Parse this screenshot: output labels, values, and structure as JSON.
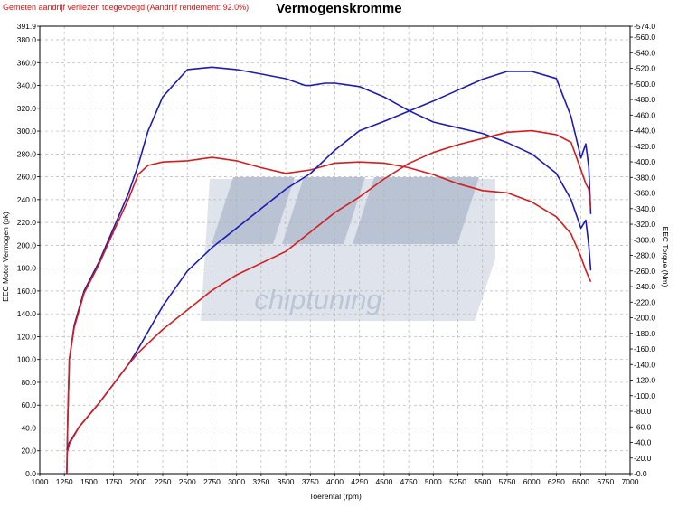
{
  "header": {
    "note": "Gemeten aandrijf verliezen toegevoegd!(Aandrijf rendement: 92.0%)",
    "title": "Vermogenskromme"
  },
  "watermark": {
    "text": "chiptuning",
    "color": "#1f3f7a"
  },
  "chart_data": {
    "type": "line",
    "title": "Vermogenskromme",
    "xlabel": "Toerental (rpm)",
    "ylabel_left": "EEC Motor Vermogen (pk)",
    "ylabel_right": "EEC Torque (Nm)",
    "xlim": [
      1000,
      7000
    ],
    "ylim_left": [
      0,
      391.9
    ],
    "ylim_right": [
      0,
      574.0
    ],
    "grid": true,
    "x_ticks": [
      "1000",
      "1250",
      "1500",
      "1750",
      "2000",
      "2250",
      "2500",
      "2750",
      "3000",
      "3250",
      "3500",
      "3750",
      "4000",
      "4250",
      "4500",
      "4750",
      "5000",
      "5250",
      "5500",
      "5750",
      "6000",
      "6250",
      "6500",
      "6750",
      "7000"
    ],
    "y_left_ticks": [
      {
        "v": 391.9,
        "label": "391.9"
      },
      {
        "v": 380,
        "label": "380.0"
      },
      {
        "v": 360,
        "label": "360.0"
      },
      {
        "v": 340,
        "label": "340.0"
      },
      {
        "v": 320,
        "label": "320.0"
      },
      {
        "v": 300,
        "label": "300.0"
      },
      {
        "v": 280,
        "label": "280.0"
      },
      {
        "v": 260,
        "label": "260.0"
      },
      {
        "v": 240,
        "label": "240.0"
      },
      {
        "v": 220,
        "label": "220.0"
      },
      {
        "v": 200,
        "label": "200.0"
      },
      {
        "v": 180,
        "label": "180.0"
      },
      {
        "v": 160,
        "label": "160.0"
      },
      {
        "v": 140,
        "label": "140.0"
      },
      {
        "v": 120,
        "label": "120.0"
      },
      {
        "v": 100,
        "label": "100.0"
      },
      {
        "v": 80,
        "label": "80.0"
      },
      {
        "v": 60,
        "label": "60.0"
      },
      {
        "v": 40,
        "label": "40.0"
      },
      {
        "v": 20,
        "label": "20.0"
      },
      {
        "v": 0,
        "label": "0.0"
      }
    ],
    "y_right_ticks": [
      {
        "v": 574,
        "label": "574.0"
      },
      {
        "v": 560,
        "label": "560.0"
      },
      {
        "v": 540,
        "label": "540.0"
      },
      {
        "v": 520,
        "label": "520.0"
      },
      {
        "v": 500,
        "label": "500.0"
      },
      {
        "v": 480,
        "label": "480.0"
      },
      {
        "v": 460,
        "label": "460.0"
      },
      {
        "v": 440,
        "label": "440.0"
      },
      {
        "v": 420,
        "label": "420.0"
      },
      {
        "v": 400,
        "label": "400.0"
      },
      {
        "v": 380,
        "label": "380.0"
      },
      {
        "v": 360,
        "label": "360.0"
      },
      {
        "v": 340,
        "label": "340.0"
      },
      {
        "v": 320,
        "label": "320.0"
      },
      {
        "v": 300,
        "label": "300.0"
      },
      {
        "v": 280,
        "label": "280.0"
      },
      {
        "v": 260,
        "label": "260.0"
      },
      {
        "v": 240,
        "label": "240.0"
      },
      {
        "v": 220,
        "label": "220.0"
      },
      {
        "v": 200,
        "label": "200.0"
      },
      {
        "v": 180,
        "label": "180.0"
      },
      {
        "v": 160,
        "label": "160.0"
      },
      {
        "v": 140,
        "label": "140.0"
      },
      {
        "v": 120,
        "label": "120.0"
      },
      {
        "v": 100,
        "label": "100.0"
      },
      {
        "v": 80,
        "label": "80.0"
      },
      {
        "v": 60,
        "label": "60.0"
      },
      {
        "v": 40,
        "label": "40.0"
      },
      {
        "v": 20,
        "label": "20.0"
      },
      {
        "v": 0,
        "label": "0.0"
      }
    ],
    "series": [
      {
        "axis": "left",
        "color": "#1c1cb4",
        "x": [
          1275,
          1285,
          1300,
          1350,
          1450,
          1600,
          1750,
          1900,
          2000,
          2100,
          2250,
          2500,
          2750,
          3000,
          3250,
          3500,
          3700,
          3750,
          3900,
          4000,
          4250,
          4500,
          4750,
          5000,
          5250,
          5500,
          5750,
          6000,
          6250,
          6400,
          6500,
          6550,
          6580,
          6600
        ],
        "y": [
          0,
          50,
          100,
          130,
          160,
          185,
          215,
          245,
          270,
          300,
          330,
          354,
          356,
          354,
          350,
          346,
          340,
          340,
          342,
          342,
          339,
          330,
          318,
          308,
          303,
          298,
          290,
          280,
          263,
          240,
          215,
          222,
          200,
          178
        ]
      },
      {
        "axis": "left",
        "color": "#d21e1e",
        "x": [
          1275,
          1285,
          1300,
          1350,
          1450,
          1600,
          1750,
          1900,
          2000,
          2100,
          2250,
          2500,
          2750,
          3000,
          3250,
          3500,
          3750,
          4000,
          4250,
          4500,
          4750,
          5000,
          5250,
          5500,
          5750,
          6000,
          6250,
          6400,
          6500,
          6550,
          6580,
          6600
        ],
        "y": [
          0,
          50,
          100,
          128,
          158,
          183,
          212,
          240,
          262,
          270,
          273,
          274,
          277,
          274,
          268,
          263,
          266,
          272,
          273,
          272,
          268,
          262,
          254,
          248,
          246,
          238,
          225,
          210,
          190,
          178,
          172,
          168
        ]
      },
      {
        "axis": "right",
        "color": "#1c1cb4",
        "x": [
          1275,
          1300,
          1400,
          1500,
          1600,
          1750,
          1900,
          2000,
          2250,
          2500,
          2750,
          3000,
          3250,
          3500,
          3750,
          4000,
          4250,
          4500,
          4750,
          5000,
          5250,
          5500,
          5750,
          6000,
          6250,
          6400,
          6500,
          6550,
          6580,
          6600
        ],
        "y": [
          30,
          40,
          60,
          75,
          90,
          115,
          140,
          160,
          215,
          260,
          290,
          315,
          340,
          365,
          385,
          415,
          440,
          452,
          465,
          478,
          492,
          506,
          516,
          516,
          507,
          458,
          405,
          423,
          393,
          333
        ]
      },
      {
        "axis": "right",
        "color": "#d21e1e",
        "x": [
          1275,
          1300,
          1400,
          1500,
          1600,
          1750,
          1900,
          2000,
          2250,
          2500,
          2750,
          3000,
          3250,
          3500,
          3750,
          4000,
          4250,
          4500,
          4750,
          5000,
          5250,
          5500,
          5750,
          6000,
          6250,
          6400,
          6500,
          6550,
          6580,
          6600
        ],
        "y": [
          25,
          38,
          60,
          75,
          90,
          115,
          140,
          155,
          185,
          210,
          235,
          255,
          270,
          285,
          310,
          335,
          355,
          378,
          398,
          412,
          422,
          430,
          438,
          440,
          435,
          425,
          390,
          372,
          365,
          340
        ]
      }
    ]
  }
}
